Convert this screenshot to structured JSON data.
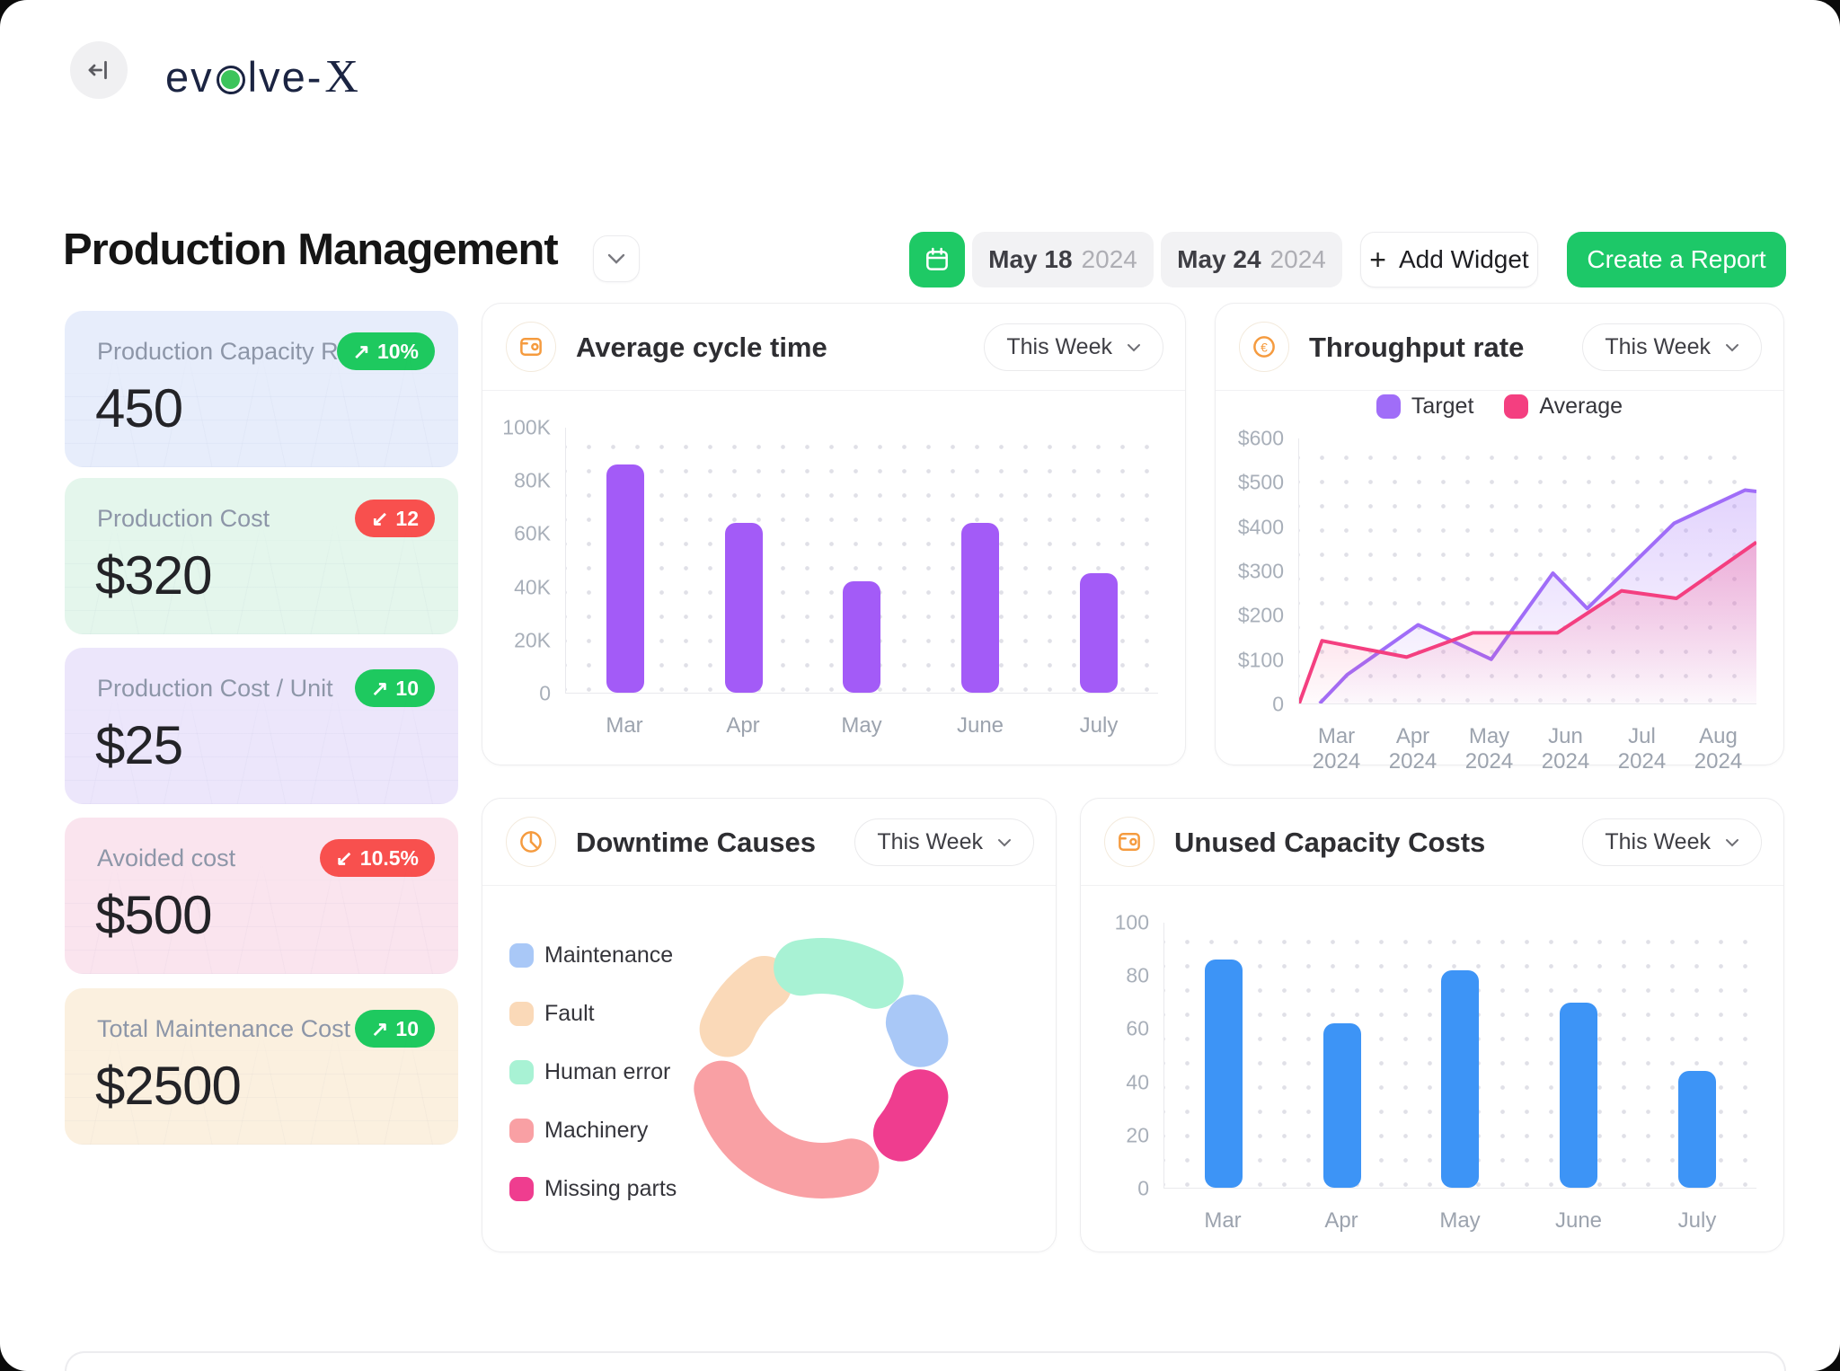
{
  "brand": {
    "full_name": "evolve-X",
    "prefix": "ev",
    "suffix": "lve-",
    "x": "X",
    "dot_color": "#3CC45B"
  },
  "header": {
    "title": "Production Management",
    "date_from": {
      "day": "May 18",
      "year": "2024"
    },
    "date_to": {
      "day": "May 24",
      "year": "2024"
    },
    "add_widget_label": "Add Widget",
    "add_widget_plus": "+",
    "create_report_label": "Create a Report"
  },
  "colors": {
    "green": "#1EC965",
    "red": "#F8504E",
    "purple_bar": "#A35BF7",
    "blue_bar": "#3D94F6",
    "accent_orange": "#F59B3F",
    "navy": "#1B2442"
  },
  "kpi_cards": [
    {
      "label": "Production Capacity Rate",
      "value": "450",
      "bg": "#E7EDFB",
      "badge": {
        "arrow": "↗",
        "text": "10%",
        "color": "#1EC95F"
      }
    },
    {
      "label": "Production Cost",
      "value": "$320",
      "bg": "#E4F6EC",
      "badge": {
        "arrow": "↙",
        "text": "12",
        "color": "#F8504E"
      }
    },
    {
      "label": "Production Cost / Unit",
      "value": "$25",
      "bg": "#ECE6FB",
      "badge": {
        "arrow": "↗",
        "text": "10",
        "color": "#1EC95F"
      }
    },
    {
      "label": "Avoided cost",
      "value": "$500",
      "bg": "#FAE4EE",
      "badge": {
        "arrow": "↙",
        "text": "10.5%",
        "color": "#F8504E"
      }
    },
    {
      "label": "Total Maintenance Cost",
      "value": "$2500",
      "bg": "#FBF0DF",
      "badge": {
        "arrow": "↗",
        "text": "10",
        "color": "#1EC95F"
      }
    }
  ],
  "panels": {
    "cycle_time": {
      "title": "Average cycle time",
      "range": "This Week"
    },
    "throughput": {
      "title": "Throughput rate",
      "range": "This Week"
    },
    "downtime": {
      "title": "Downtime Causes",
      "range": "This Week"
    },
    "unused": {
      "title": "Unused Capacity Costs",
      "range": "This Week"
    }
  },
  "chart_data": [
    {
      "id": "cycle_time",
      "type": "bar",
      "title": "Average cycle time",
      "categories": [
        "Mar",
        "Apr",
        "May",
        "June",
        "July"
      ],
      "values": [
        86000,
        64000,
        42000,
        64000,
        45000
      ],
      "ylim": [
        0,
        100000
      ],
      "yticks": [
        "100K",
        "80K",
        "60K",
        "40K",
        "20K",
        "0"
      ],
      "bar_color": "#A35BF7",
      "grid": "dotted",
      "xlabel": "",
      "ylabel": ""
    },
    {
      "id": "throughput",
      "type": "line",
      "title": "Throughput rate",
      "x_ticks": [
        "Mar 2024",
        "Apr 2024",
        "May 2024",
        "Jun 2024",
        "Jul 2024",
        "Aug 2024"
      ],
      "ylim": [
        0,
        600
      ],
      "yticks": [
        "$600",
        "$500",
        "$400",
        "$300",
        "$200",
        "$100",
        "0"
      ],
      "legend_position": "top",
      "grid": "dotted",
      "series": [
        {
          "name": "Target",
          "color": "#A06DF8",
          "points": [
            [
              0.045,
              0
            ],
            [
              0.105,
              65
            ],
            [
              0.26,
              178
            ],
            [
              0.42,
              100
            ],
            [
              0.555,
              295
            ],
            [
              0.63,
              215
            ],
            [
              0.82,
              408
            ],
            [
              0.975,
              483
            ],
            [
              1.0,
              480
            ]
          ]
        },
        {
          "name": "Average",
          "color": "#F43F80",
          "points": [
            [
              0.0,
              0
            ],
            [
              0.05,
              142
            ],
            [
              0.235,
              105
            ],
            [
              0.38,
              160
            ],
            [
              0.565,
              160
            ],
            [
              0.705,
              255
            ],
            [
              0.825,
              238
            ],
            [
              1.0,
              365
            ]
          ]
        }
      ]
    },
    {
      "id": "downtime",
      "type": "pie",
      "title": "Downtime Causes",
      "donut": true,
      "segments": [
        {
          "label": "Maintenance",
          "color": "#A9C8F7",
          "pct": 10,
          "start": 50,
          "end": 87
        },
        {
          "label": "Fault",
          "color": "#FAD9B8",
          "pct": 17,
          "start": 279,
          "end": 339
        },
        {
          "label": "Human error",
          "color": "#A8F2D4",
          "pct": 19,
          "start": -25,
          "end": 45
        },
        {
          "label": "Machinery",
          "color": "#F9A0A4",
          "pct": 36,
          "start": 150,
          "end": 272
        },
        {
          "label": "Missing parts",
          "color": "#EF3D8F",
          "pct": 14,
          "start": 93,
          "end": 143
        }
      ]
    },
    {
      "id": "unused",
      "type": "bar",
      "title": "Unused Capacity Costs",
      "categories": [
        "Mar",
        "Apr",
        "May",
        "June",
        "July"
      ],
      "values": [
        86,
        62,
        82,
        70,
        44
      ],
      "ylim": [
        0,
        100
      ],
      "yticks": [
        "100",
        "80",
        "60",
        "40",
        "20",
        "0"
      ],
      "bar_color": "#3D94F6",
      "grid": "dotted",
      "xlabel": "",
      "ylabel": ""
    }
  ]
}
